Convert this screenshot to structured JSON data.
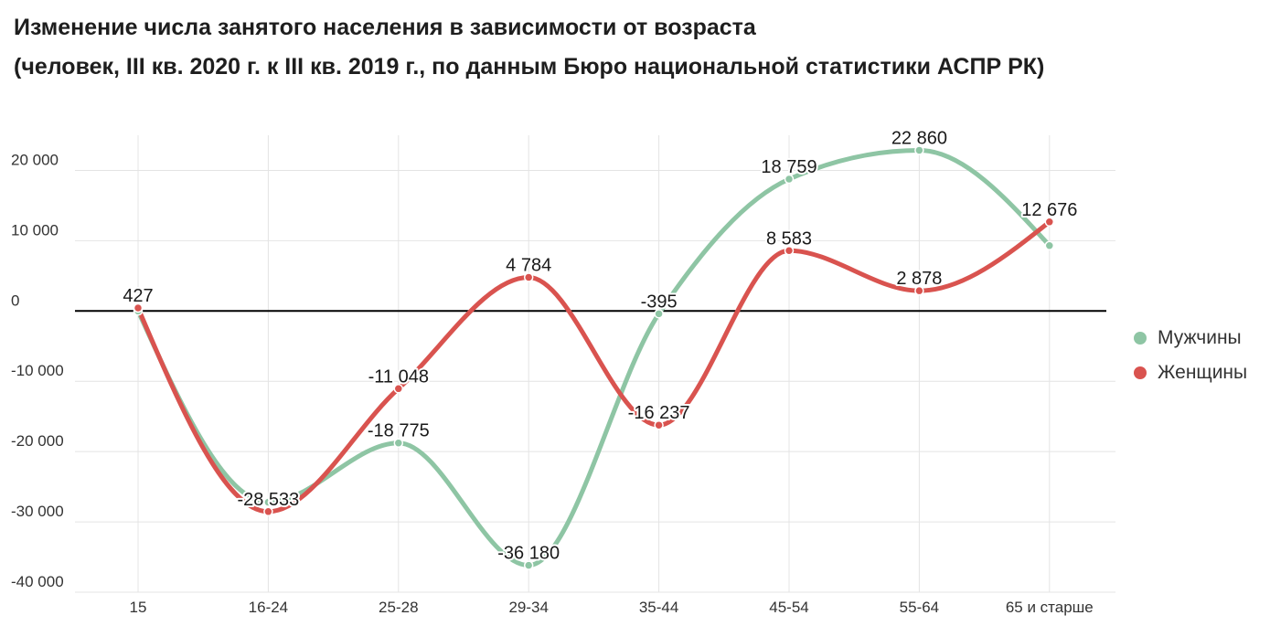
{
  "chart_data": {
    "type": "line",
    "title": "Изменение числа занятого населения в зависимости от возраста",
    "subtitle": "(человек, III кв. 2020 г. к III кв. 2019 г., по данным Бюро национальной статистики АСПР РК)",
    "categories": [
      "15",
      "16-24",
      "25-28",
      "29-34",
      "35-44",
      "45-54",
      "55-64",
      "65 и старше"
    ],
    "ylim": [
      -40000,
      25000
    ],
    "y_ticks": [
      20000,
      10000,
      0,
      -10000,
      -20000,
      -30000,
      -40000
    ],
    "y_tick_labels": [
      "20 000",
      "10 000",
      "0",
      "-10 000",
      "-20 000",
      "-30 000",
      "-40 000"
    ],
    "grid": true,
    "zero_line": true,
    "legend": "right",
    "series": [
      {
        "name": "Мужчины",
        "color": "#8ec5a4",
        "values": [
          0,
          -27200,
          -18775,
          -36180,
          -395,
          18759,
          22860,
          9300
        ],
        "data_labels": [
          null,
          null,
          "-18 775",
          "-36 180",
          "-395",
          "18 759",
          "22 860",
          null
        ]
      },
      {
        "name": "Женщины",
        "color": "#d9534f",
        "values": [
          427,
          -28533,
          -11048,
          4784,
          -16237,
          8583,
          2878,
          12676
        ],
        "data_labels": [
          "427",
          "-28 533",
          "-11 048",
          "4 784",
          "-16 237",
          "8 583",
          "2 878",
          "12 676"
        ]
      }
    ]
  }
}
